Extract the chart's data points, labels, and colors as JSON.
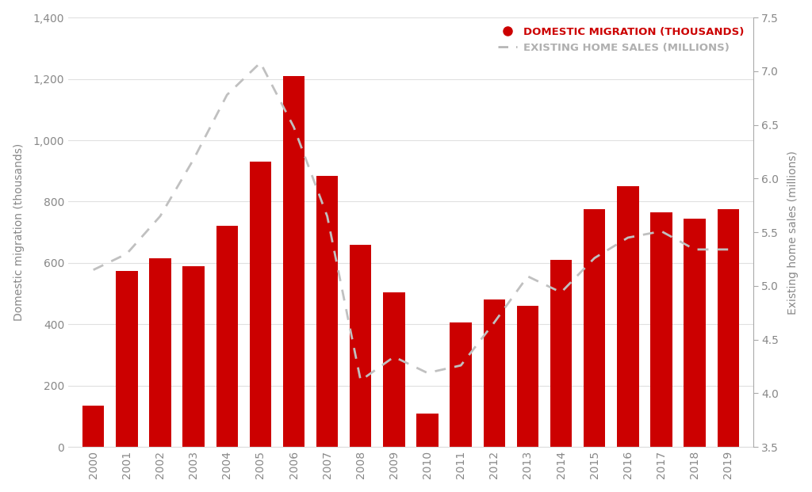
{
  "years": [
    2000,
    2001,
    2002,
    2003,
    2004,
    2005,
    2006,
    2007,
    2008,
    2009,
    2010,
    2011,
    2012,
    2013,
    2014,
    2015,
    2016,
    2017,
    2018,
    2019
  ],
  "migration": [
    135,
    575,
    615,
    590,
    720,
    930,
    1210,
    885,
    660,
    505,
    110,
    405,
    480,
    460,
    610,
    775,
    850,
    765,
    745,
    775
  ],
  "home_sales": [
    5.15,
    5.3,
    5.65,
    6.18,
    6.78,
    7.08,
    6.48,
    5.65,
    4.12,
    4.34,
    4.19,
    4.26,
    4.66,
    5.09,
    4.94,
    5.26,
    5.45,
    5.51,
    5.34,
    5.34
  ],
  "bar_color": "#cc0000",
  "line_color": "#c0c0c0",
  "ylabel_left": "Domestic migration (thousands)",
  "ylabel_right": "Existing home sales (millions)",
  "ylim_left": [
    0,
    1400
  ],
  "ylim_right": [
    3.5,
    7.5
  ],
  "yticks_left": [
    0,
    200,
    400,
    600,
    800,
    1000,
    1200,
    1400
  ],
  "ytick_labels_left": [
    "0",
    "200",
    "400",
    "600",
    "800",
    "1,000",
    "1,200",
    "1,400"
  ],
  "yticks_right": [
    3.5,
    4.0,
    4.5,
    5.0,
    5.5,
    6.0,
    6.5,
    7.0,
    7.5
  ],
  "ytick_labels_right": [
    "3.5",
    "4.0",
    "4.5",
    "5.0",
    "5.5",
    "6.0",
    "6.5",
    "7.0",
    "7.5"
  ],
  "legend_migration": "DOMESTIC MIGRATION (THOUSANDS)",
  "legend_homes": "EXISTING HOME SALES (MILLIONS)",
  "bg_color": "#ffffff",
  "grid_color": "#e0e0e0",
  "tick_color": "#aaaaaa",
  "label_color": "#888888",
  "migration_legend_color": "#cc0000",
  "homes_legend_color": "#b0b0b0"
}
